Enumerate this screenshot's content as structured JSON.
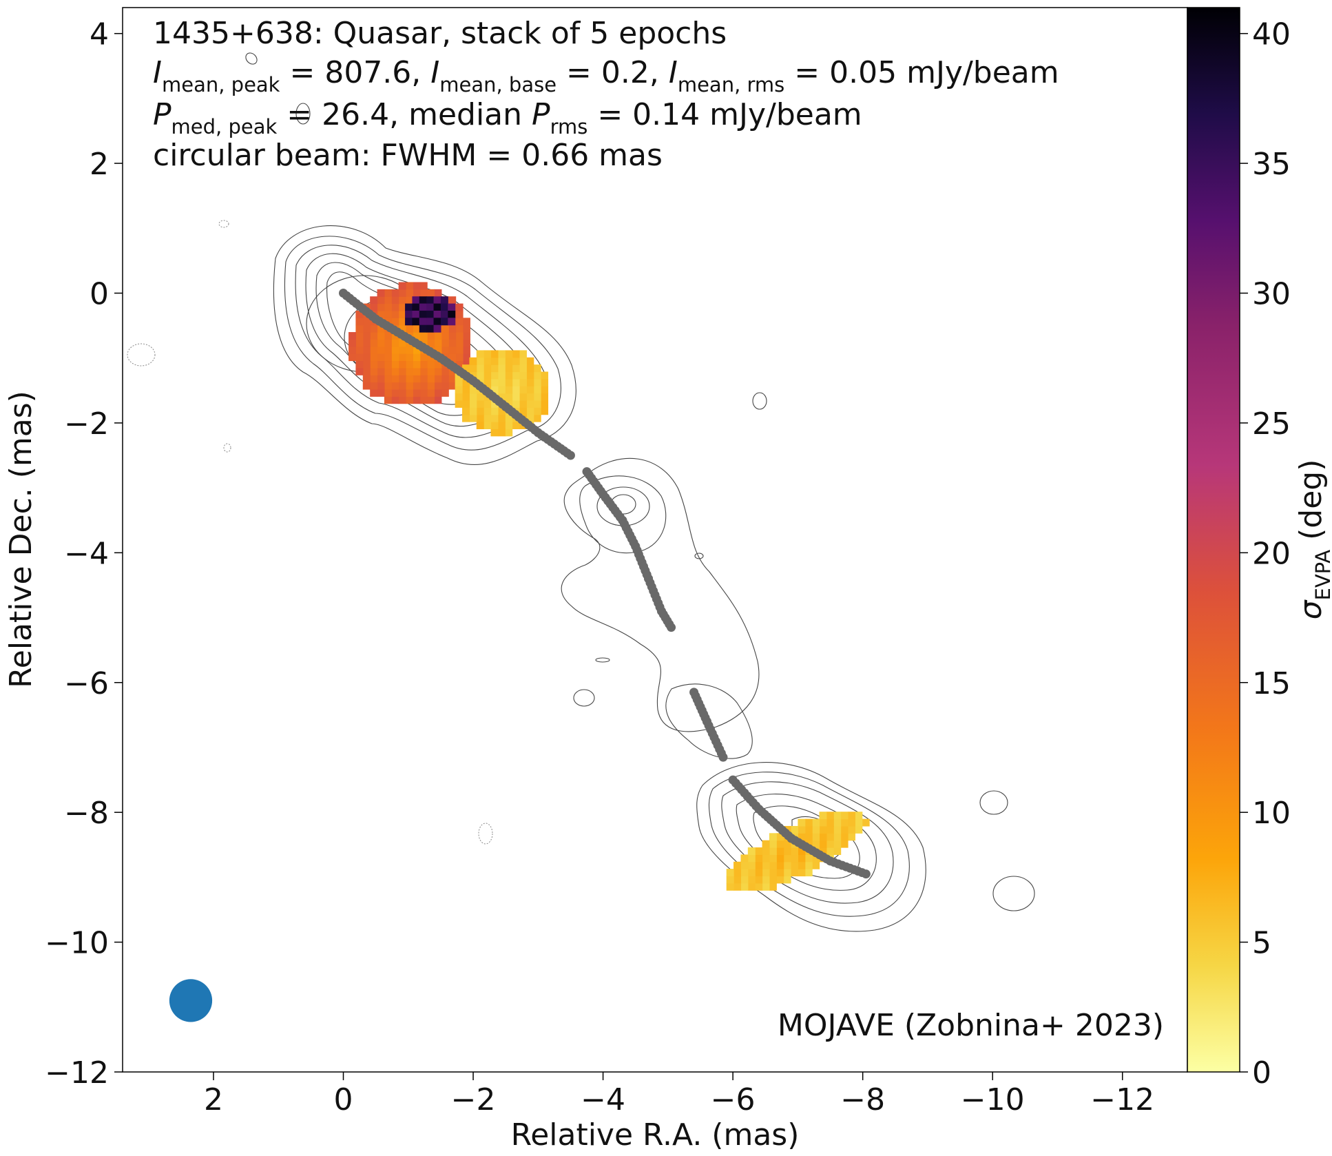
{
  "chart_data": {
    "type": "heatmap",
    "title_lines": [
      "1435+638: Quasar, stack of 5 epochs",
      "I_mean,peak = 807.6, I_mean,base = 0.2, I_mean,rms = 0.05 mJy/beam",
      "P_med,peak = 26.4, median P_rms = 0.14 mJy/beam",
      "circular beam: FWHM = 0.66 mas"
    ],
    "title": {
      "line1": "1435+638: Quasar, stack of 5 epochs",
      "line4": "circular beam: FWHM = 0.66 mas",
      "I_sym": "I",
      "P_sym": "P",
      "sub_mean_peak": "mean, peak",
      "sub_mean_base": "mean, base",
      "sub_mean_rms": "mean, rms",
      "sub_med_peak": "med, peak",
      "sub_rms": "rms",
      "val_mean_peak": " = 807.6, ",
      "val_mean_base": " = 0.2, ",
      "val_mean_rms": " = 0.05 mJy/beam",
      "val_med_peak": " = 26.4, median ",
      "val_rms": " = 0.14 mJy/beam"
    },
    "credit": "MOJAVE (Zobnina+ 2023)",
    "xlabel": "Relative R.A. (mas)",
    "ylabel": "Relative Dec. (mas)",
    "xlim": [
      3.4,
      -13.0
    ],
    "ylim": [
      -12.0,
      4.4
    ],
    "x_ticks": [
      2,
      0,
      -2,
      -4,
      -6,
      -8,
      -10,
      -12
    ],
    "x_tick_labels": [
      "2",
      "0",
      "−2",
      "−4",
      "−6",
      "−8",
      "−10",
      "−12"
    ],
    "y_ticks": [
      4,
      2,
      0,
      -2,
      -4,
      -6,
      -8,
      -10,
      -12
    ],
    "y_tick_labels": [
      "4",
      "2",
      "0",
      "−2",
      "−4",
      "−6",
      "−8",
      "−10",
      "−12"
    ],
    "colorbar": {
      "label_sym": "σ",
      "label_sub": "EVPA",
      "label_unit": " (deg)",
      "range": [
        0,
        41
      ],
      "ticks": [
        0,
        5,
        10,
        15,
        20,
        25,
        30,
        35,
        40
      ],
      "tick_labels": [
        "0",
        "5",
        "10",
        "15",
        "20",
        "25",
        "30",
        "35",
        "40"
      ],
      "colormap": "inferno_r"
    },
    "beam": {
      "x": 2.35,
      "y": -10.9,
      "fwhm": 0.66,
      "color": "#1f77b4"
    },
    "ridge_line": [
      {
        "x": 0.0,
        "y": 0.0
      },
      {
        "x": -0.5,
        "y": -0.4
      },
      {
        "x": -1.0,
        "y": -0.7
      },
      {
        "x": -1.5,
        "y": -1.0
      },
      {
        "x": -2.0,
        "y": -1.35
      },
      {
        "x": -2.5,
        "y": -1.75
      },
      {
        "x": -3.0,
        "y": -2.15
      },
      {
        "x": -3.5,
        "y": -2.5
      },
      {
        "x": -3.75,
        "y": -2.75
      },
      {
        "x": -4.0,
        "y": -3.1
      },
      {
        "x": -4.3,
        "y": -3.5
      },
      {
        "x": -4.5,
        "y": -3.9
      },
      {
        "x": -4.7,
        "y": -4.4
      },
      {
        "x": -4.9,
        "y": -4.9
      },
      {
        "x": -5.05,
        "y": -5.15
      },
      {
        "x": -5.4,
        "y": -6.15
      },
      {
        "x": -5.6,
        "y": -6.6
      },
      {
        "x": -5.85,
        "y": -7.15
      },
      {
        "x": -6.0,
        "y": -7.5
      },
      {
        "x": -6.4,
        "y": -7.95
      },
      {
        "x": -6.9,
        "y": -8.4
      },
      {
        "x": -7.5,
        "y": -8.75
      },
      {
        "x": -8.05,
        "y": -8.95
      }
    ],
    "ridge_gaps_after_index": [
      7,
      14,
      17
    ],
    "ridge_color": "#696969",
    "contour_color": "#444444",
    "evpa_regions": [
      {
        "cx": -1.0,
        "cy": -0.75,
        "rx": 0.95,
        "ry": 0.95,
        "sigma_center": 9,
        "sigma_edge": 18
      },
      {
        "cx": -2.4,
        "cy": -1.45,
        "rx": 0.75,
        "ry": 0.65,
        "sigma_center": 4,
        "sigma_edge": 6
      },
      {
        "cx": -6.9,
        "cy": -8.55,
        "rx": 1.2,
        "ry": 0.38,
        "sigma_center": 7,
        "sigma_edge": 5,
        "rotation_deg": -26
      }
    ],
    "evpa_high_patch": {
      "x_range": [
        -0.95,
        -1.7
      ],
      "y_range": [
        -0.05,
        -0.5
      ],
      "sigma": 36
    }
  }
}
